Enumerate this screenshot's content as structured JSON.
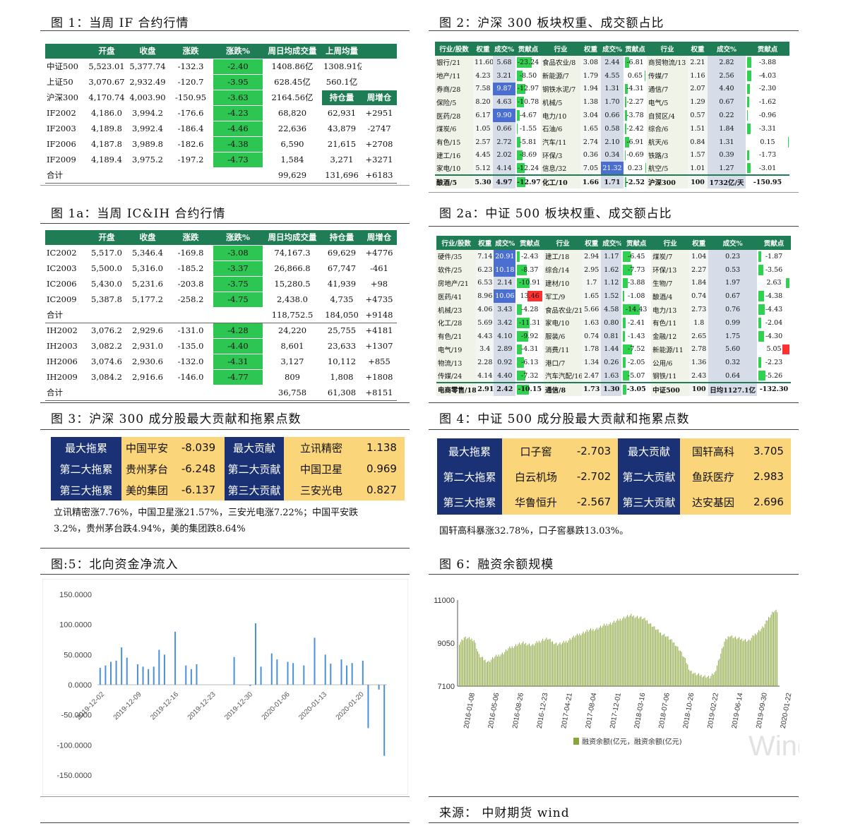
{
  "fig1": {
    "caption": "图 1：当周 IF 合约行情",
    "header": [
      "",
      "开盘",
      "收盘",
      "涨跌",
      "涨跌%",
      "周日均成交量",
      "上周均量",
      ""
    ],
    "rows": [
      [
        "中证500",
        "5,523.01",
        "5,377.74",
        "-132.3",
        "-2.40",
        "1408.86亿",
        "1308.91亿",
        ""
      ],
      [
        "上证50",
        "3,070.67",
        "2,932.49",
        "-120.7",
        "-3.95",
        "628.45亿",
        "560.1亿",
        ""
      ],
      [
        "沪深300",
        "4,170.74",
        "4,003.90",
        "-150.95",
        "-3.63",
        "2164.56亿",
        "持仓量",
        "周增仓"
      ],
      [
        "IF2002",
        "4,186.0",
        "3,994.2",
        "-176.6",
        "-4.23",
        "68,820",
        "62,931",
        "+2951"
      ],
      [
        "IF2003",
        "4,189.8",
        "3,992.4",
        "-186.4",
        "-4.46",
        "22,636",
        "43,879",
        "-2747"
      ],
      [
        "IF2006",
        "4,187.8",
        "3,989.8",
        "-182.6",
        "-4.38",
        "6,590",
        "21,615",
        "+2708"
      ],
      [
        "IF2009",
        "4,189.4",
        "3,975.2",
        "-197.2",
        "-4.73",
        "1,584",
        "3,271",
        "+3271"
      ],
      [
        "合计",
        "",
        "",
        "",
        "",
        "99,629",
        "131,696",
        "+6183"
      ]
    ]
  },
  "fig1a": {
    "caption": "图 1a：当周 IC&IH 合约行情",
    "header": [
      "",
      "开盘",
      "收盘",
      "涨跌",
      "涨跌%",
      "周日均成交量",
      "持仓量",
      "周增仓"
    ],
    "rows": [
      [
        "IC2002",
        "5,517.0",
        "5,346.4",
        "-169.8",
        "-3.08",
        "74,167.3",
        "69,629",
        "+4776"
      ],
      [
        "IC2003",
        "5,500.0",
        "5,316.0",
        "-185.2",
        "-3.37",
        "26,866.8",
        "67,747",
        "-461"
      ],
      [
        "IC2006",
        "5,430.0",
        "5,231.6",
        "-203.8",
        "-3.75",
        "15,280.5",
        "41,939",
        "+98"
      ],
      [
        "IC2009",
        "5,387.8",
        "5,177.2",
        "-258.2",
        "-4.75",
        "2,438.0",
        "4,735",
        "+4735"
      ],
      [
        "合计",
        "",
        "",
        "",
        "",
        "118,752.5",
        "184,050",
        "+9148"
      ],
      [
        "IH2002",
        "3,076.2",
        "2,929.6",
        "-131.0",
        "-4.28",
        "24,220",
        "25,755",
        "+4181"
      ],
      [
        "IH2003",
        "3,082.2",
        "2,931.0",
        "-135.0",
        "-4.40",
        "8,601",
        "23,633",
        "+1307"
      ],
      [
        "IH2006",
        "3,074.6",
        "2,930.6",
        "-132.0",
        "-4.31",
        "3,127",
        "10,112",
        "+855"
      ],
      [
        "IH2009",
        "3,084.2",
        "2,916.6",
        "-146.0",
        "-4.77",
        "809",
        "1,808",
        "+1808"
      ],
      [
        "合计",
        "",
        "",
        "",
        "",
        "36,758",
        "61,308",
        "+8151"
      ]
    ]
  },
  "fig2": {
    "caption": "图 2：沪深 300 板块权重、成交额占比",
    "header": [
      "行业/股数",
      "权重",
      "成交%",
      "贡献点",
      "行业",
      "权重",
      "成交%",
      "贡献点",
      "行业",
      "权重",
      "成交%",
      "贡献点"
    ],
    "rows": [
      [
        "银行/21",
        "11.60",
        "5.68",
        "-23.24",
        "食品农业/8",
        "3.08",
        "2.44",
        "-6.81",
        "商贸物流/13",
        "2.21",
        "2.82",
        "-3.88"
      ],
      [
        "地产/11",
        "4.23",
        "3.21",
        "-8.50",
        "新能源/7",
        "1.79",
        "4.55",
        "0.65",
        "传媒/7",
        "1.16",
        "2.56",
        "-4.03"
      ],
      [
        "券商/28",
        "7.58",
        "9.87",
        "-12.97",
        "钢铁水泥/7",
        "1.94",
        "1.31",
        "-4.31",
        "通信/7",
        "2.07",
        "4.40",
        "-2.30"
      ],
      [
        "保险/5",
        "8.20",
        "4.63",
        "-10.78",
        "机械/5",
        "1.38",
        "1.70",
        "-2.27",
        "电气/5",
        "1.29",
        "0.67",
        "-1.62"
      ],
      [
        "医药/28",
        "6.17",
        "9.90",
        "-4.67",
        "电力/10",
        "3.04",
        "0.66",
        "-3.78",
        "自贸区/4",
        "0.57",
        "0.22",
        "-0.96"
      ],
      [
        "煤炭/6",
        "1.05",
        "0.66",
        "-1.55",
        "石油/6",
        "1.65",
        "0.58",
        "-2.42",
        "综合/6",
        "1.51",
        "1.84",
        "-3.31"
      ],
      [
        "有色/15",
        "2.57",
        "2.72",
        "-5.81",
        "汽车/11",
        "2.74",
        "2.10",
        "-6.91",
        "航天/6",
        "0.84",
        "1.31",
        "0.15"
      ],
      [
        "建工/16",
        "4.45",
        "2.02",
        "-8.69",
        "环保/3",
        "0.36",
        "0.34",
        "-0.69",
        "铁路/3",
        "1.57",
        "0.39",
        "-1.73"
      ],
      [
        "家电/10",
        "5.12",
        "4.14",
        "-12.24",
        "信息/32",
        "7.05",
        "21.32",
        "0.23",
        "航空/5",
        "1.01",
        "1.27",
        "-3.01"
      ],
      [
        "酿酒/5",
        "5.30",
        "4.97",
        "-12.97",
        "化工/10",
        "1.66",
        "1.71",
        "-2.52",
        "沪深300",
        "100",
        "1732亿/天",
        "-150.95"
      ]
    ]
  },
  "fig2a": {
    "caption": "图 2a：中证 500 板块权重、成交额占比",
    "header": [
      "行业/股数",
      "权重",
      "成交%",
      "贡献点",
      "行业",
      "权重",
      "成交%",
      "贡献点",
      "行业",
      "权重",
      "成交%",
      "贡献点"
    ],
    "rows": [
      [
        "硬件/35",
        "7.14",
        "20.91",
        "-2.43",
        "建工/18",
        "2.94",
        "1.17",
        "-6.45",
        "煤炭/7",
        "1.04",
        "0.23",
        "-1.87"
      ],
      [
        "软件/25",
        "6.23",
        "10.18",
        "-8.37",
        "综合/14",
        "2.95",
        "1.62",
        "-7.73",
        "环保/13",
        "2.27",
        "0.53",
        "-3.56"
      ],
      [
        "房地产/21",
        "6.53",
        "2.14",
        "-10.91",
        "建材/10",
        "1.7",
        "1.12",
        "-3.88",
        "生物/7",
        "1.84",
        "1.97",
        "2.63"
      ],
      [
        "医药/41",
        "8.96",
        "10.06",
        "13.46",
        "军工/9",
        "1.65",
        "1.52",
        "-1.08",
        "酿酒/4",
        "0.74",
        "0.67",
        "-4.38"
      ],
      [
        "机械/23",
        "4.06",
        "3.43",
        "-4.28",
        "食品农业/21",
        "5.66",
        "4.58",
        "-14.43",
        "电力/13",
        "2.73",
        "0.76",
        "-4.43"
      ],
      [
        "化工/28",
        "5.69",
        "3.42",
        "-11.31",
        "家电/10",
        "1.63",
        "0.80",
        "-2.41",
        "有色/11",
        "1.8",
        "0.99",
        "-2.04"
      ],
      [
        "有色/21",
        "4.43",
        "4.10",
        "-9.92",
        "服装/6",
        "0.74",
        "0.81",
        "-1.43",
        "金融/12",
        "2.65",
        "1.75",
        "-4.30"
      ],
      [
        "电气/19",
        "3.4",
        "2.89",
        "-4.31",
        "消费/11",
        "1.78",
        "1.44",
        "-7.52",
        "新能源/11",
        "2.78",
        "5.60",
        "5.05"
      ],
      [
        "物流/13",
        "2.28",
        "0.92",
        "-6.13",
        "港口/7",
        "1.34",
        "0.26",
        "-2.05",
        "公用/6",
        "1.36",
        "0.32",
        "-2.23"
      ],
      [
        "传媒/24",
        "4.14",
        "4.40",
        "-7.32",
        "汽车汽配/16",
        "2.47",
        "1.63",
        "-5.07",
        "钢铁/11",
        "2.43",
        "0.64",
        "-5.26"
      ],
      [
        "电商零售/18",
        "2.91",
        "2.42",
        "-10.15",
        "通信/8",
        "1.73",
        "1.30",
        "-3.05",
        "中证500",
        "100",
        "日均1127.1亿",
        "-132.30"
      ]
    ]
  },
  "fig3": {
    "caption": "图 3：沪深 300 成分股最大贡献和拖累点数",
    "rows": [
      [
        "最大拖累",
        "中国平安",
        "-8.039",
        "最大贡献",
        "立讯精密",
        "1.138"
      ],
      [
        "第二大拖累",
        "贵州茅台",
        "-6.248",
        "第二大贡献",
        "中国卫星",
        "0.969"
      ],
      [
        "第三大拖累",
        "美的集团",
        "-6.137",
        "第三大贡献",
        "三安光电",
        "0.827"
      ]
    ],
    "note1": "立讯精密涨7.76%，中国卫星涨21.57%，三安光电涨7.22%；中国平安跌",
    "note2": "3.2%，贵州茅台跌4.94%，美的集团跌8.64%"
  },
  "fig4": {
    "caption": "图 4：中证 500 成分股最大贡献和拖累点数",
    "rows": [
      [
        "最大拖累",
        "口子窖",
        "-2.703",
        "最大贡献",
        "国轩高科",
        "3.705"
      ],
      [
        "第二大拖累",
        "白云机场",
        "-2.702",
        "第二大贡献",
        "鱼跃医疗",
        "2.983"
      ],
      [
        "第三大拖累",
        "华鲁恒升",
        "-2.567",
        "第三大贡献",
        "达安基因",
        "2.696"
      ]
    ],
    "note": "国轩高科暴涨32.78%，口子窖暴跌13.03%。"
  },
  "fig5": {
    "caption": "图:5：北向资金净流入"
  },
  "fig6": {
    "caption": "图 6：融资余额规模",
    "legend": "融资余额(亿元，融资余额(亿元)",
    "watermark": "Wind"
  },
  "source": "来源： 中财期货 wind",
  "colors": {
    "green_header": "#1e7d55",
    "bar_green": "#2dc652",
    "navy": "#1a3275",
    "gold": "#fbd57a",
    "blue_bar": "#4a90d9",
    "olive": "#8aa53c"
  },
  "chart_data": [
    {
      "type": "bar",
      "title": "",
      "ylim": [
        -150,
        150
      ],
      "yticks": [
        "150.0000",
        "100.0000",
        "50.0000",
        "0.0000",
        "-50.0000",
        "-100.0000",
        "-150.0000"
      ],
      "xticks": [
        "2019-12-02",
        "2019-12-09",
        "2019-12-16",
        "2019-12-23",
        "2019-12-30",
        "2020-01-06",
        "2020-01-13",
        "2020-01-20"
      ],
      "values": [
        28,
        32,
        38,
        40,
        62,
        45,
        0,
        34,
        30,
        26,
        30,
        58,
        50,
        0,
        88,
        0,
        32,
        26,
        34,
        0,
        0,
        0,
        0,
        0,
        0,
        46,
        0,
        0,
        -2,
        102,
        30,
        0,
        52,
        42,
        0,
        38,
        36,
        0,
        32,
        0,
        78,
        0,
        50,
        35,
        0,
        42,
        32,
        36,
        0,
        40,
        -72,
        0,
        -8,
        -118
      ]
    },
    {
      "type": "bar",
      "title": "",
      "ylim": [
        7100,
        11000
      ],
      "yticks": [
        "11000",
        "9050",
        "7100"
      ],
      "xticks": [
        "2016-01-08",
        "2016-05-06",
        "2016-08-26",
        "2016-12-23",
        "2017-04-21",
        "2017-08-04",
        "2017-12-01",
        "2018-03-16",
        "2018-07-06",
        "2018-10-26",
        "2019-02-22",
        "2019-06-14",
        "2019-09-30",
        "2020-01-22"
      ],
      "series": [
        {
          "name": "融资余额(亿元，融资余额(亿元)",
          "values": [
            9050,
            9300,
            9250,
            9200,
            8500,
            8300,
            8200,
            8400,
            8500,
            8600,
            8800,
            8900,
            9000,
            9050,
            9000,
            8950,
            9100,
            9200,
            9250,
            9100,
            9000,
            9050,
            9150,
            9300,
            9400,
            9500,
            9600,
            9650,
            9700,
            9800,
            9900,
            9950,
            10050,
            10150,
            10250,
            10300,
            10250,
            10200,
            10100,
            9900,
            9700,
            9500,
            9400,
            9200,
            9000,
            8700,
            8300,
            7800,
            7650,
            7600,
            7550,
            7500,
            7700,
            8400,
            9100,
            9400,
            9300,
            9250,
            9200,
            9150,
            9400,
            9600,
            9800,
            10200,
            10500
          ]
        }
      ]
    }
  ]
}
